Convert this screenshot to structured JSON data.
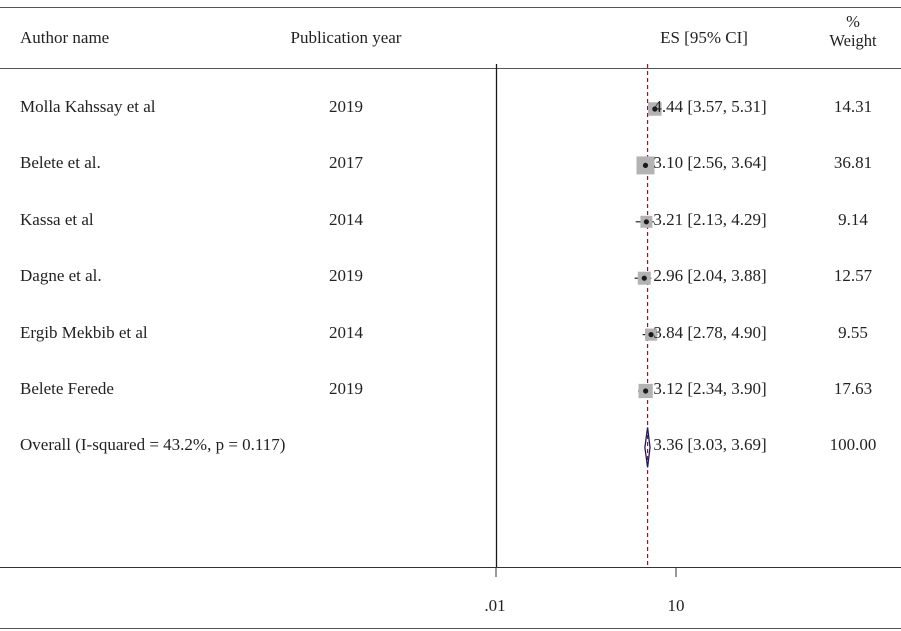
{
  "headers": {
    "author": "Author name",
    "year": "Publication year",
    "es": "ES [95% CI]",
    "weight_line1": "%",
    "weight_line2": "Weight"
  },
  "chart_data": {
    "type": "forest",
    "x_scale": "log",
    "x_tick_labels": [
      ".01",
      "10"
    ],
    "x_ticks": [
      0.01,
      10
    ],
    "null_line": 0.01,
    "overall_line": 3.36,
    "studies": [
      {
        "author": "Molla Kahssay et al",
        "year": "2019",
        "es": 4.44,
        "lo": 3.57,
        "hi": 5.31,
        "es_text": "4.44 [3.57, 5.31]",
        "weight": 14.31,
        "weight_text": "14.31"
      },
      {
        "author": "Belete et al.",
        "year": "2017",
        "es": 3.1,
        "lo": 2.56,
        "hi": 3.64,
        "es_text": "3.10 [2.56, 3.64]",
        "weight": 36.81,
        "weight_text": "36.81"
      },
      {
        "author": "Kassa et al",
        "year": "2014",
        "es": 3.21,
        "lo": 2.13,
        "hi": 4.29,
        "es_text": "3.21 [2.13, 4.29]",
        "weight": 9.14,
        "weight_text": "9.14"
      },
      {
        "author": "Dagne et al.",
        "year": "2019",
        "es": 2.96,
        "lo": 2.04,
        "hi": 3.88,
        "es_text": "2.96 [2.04, 3.88]",
        "weight": 12.57,
        "weight_text": "12.57"
      },
      {
        "author": "Ergib Mekbib et al",
        "year": "2014",
        "es": 3.84,
        "lo": 2.78,
        "hi": 4.9,
        "es_text": "3.84 [2.78, 4.90]",
        "weight": 9.55,
        "weight_text": "9.55"
      },
      {
        "author": "Belete Ferede",
        "year": "2019",
        "es": 3.12,
        "lo": 2.34,
        "hi": 3.9,
        "es_text": "3.12 [2.34, 3.90]",
        "weight": 17.63,
        "weight_text": "17.63"
      }
    ],
    "overall": {
      "label": "Overall (I-squared = 43.2%, p = 0.117)",
      "es": 3.36,
      "lo": 3.03,
      "hi": 3.69,
      "es_text": "3.36 [3.03, 3.69]",
      "weight_text": "100.00"
    },
    "colors": {
      "diamond": "#1a1a5e",
      "overall_line": "#8b1a2b",
      "box": "#b3b3b3",
      "line": "#1a1a1a"
    }
  }
}
